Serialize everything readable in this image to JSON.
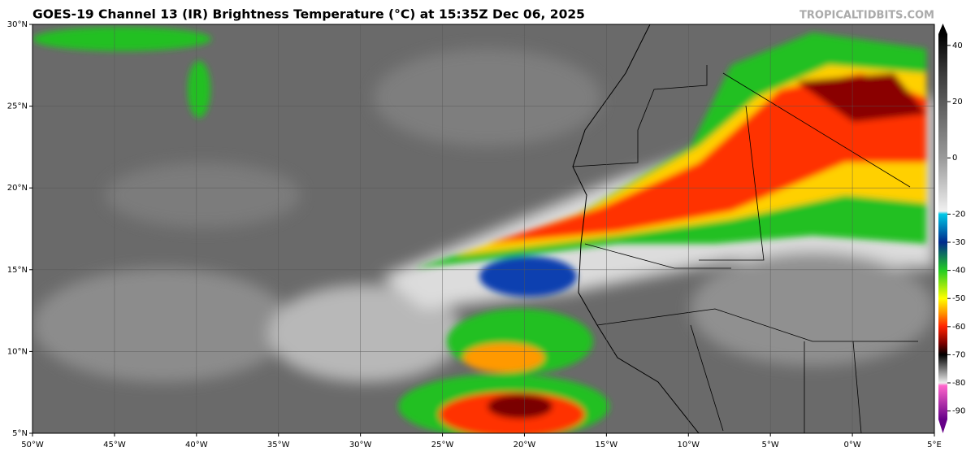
{
  "header": {
    "title": "GOES-19 Channel 13 (IR) Brightness Temperature (°C) at 15:35Z Dec 06, 2025",
    "watermark": "TROPICALTIDBITS.COM"
  },
  "map": {
    "xlim": [
      -50,
      5
    ],
    "ylim": [
      5,
      30
    ],
    "xticks": [
      {
        "value": -50,
        "label": "50°W"
      },
      {
        "value": -45,
        "label": "45°W"
      },
      {
        "value": -40,
        "label": "40°W"
      },
      {
        "value": -35,
        "label": "35°W"
      },
      {
        "value": -30,
        "label": "30°W"
      },
      {
        "value": -25,
        "label": "25°W"
      },
      {
        "value": -20,
        "label": "20°W"
      },
      {
        "value": -15,
        "label": "15°W"
      },
      {
        "value": -10,
        "label": "10°W"
      },
      {
        "value": -5,
        "label": "5°W"
      },
      {
        "value": 0,
        "label": "0°W"
      },
      {
        "value": 5,
        "label": "5°E"
      }
    ],
    "yticks": [
      {
        "value": 30,
        "label": "30°N"
      },
      {
        "value": 25,
        "label": "25°N"
      },
      {
        "value": 20,
        "label": "20°N"
      },
      {
        "value": 15,
        "label": "15°N"
      },
      {
        "value": 10,
        "label": "10°N"
      },
      {
        "value": 5,
        "label": "5°N"
      }
    ],
    "grid": true
  },
  "colorbar": {
    "lim": [
      -93,
      44
    ],
    "ticks": [
      40,
      20,
      0,
      -20,
      -30,
      -40,
      -50,
      -60,
      -70,
      -80,
      -90
    ],
    "colormap": [
      [
        44,
        "#000000"
      ],
      [
        30,
        "#3a3a3a"
      ],
      [
        0,
        "#9a9a9a"
      ],
      [
        -19,
        "#f0f0f0"
      ],
      [
        -20,
        "#00c8e6"
      ],
      [
        -30,
        "#002a8c"
      ],
      [
        -40,
        "#22cc22"
      ],
      [
        -50,
        "#ffff00"
      ],
      [
        -55,
        "#ff9900"
      ],
      [
        -60,
        "#ff2200"
      ],
      [
        -66,
        "#7a0000"
      ],
      [
        -70,
        "#000000"
      ],
      [
        -75,
        "#777777"
      ],
      [
        -80,
        "#eeeeee"
      ],
      [
        -81,
        "#ff66cc"
      ],
      [
        -93,
        "#660088"
      ]
    ]
  }
}
